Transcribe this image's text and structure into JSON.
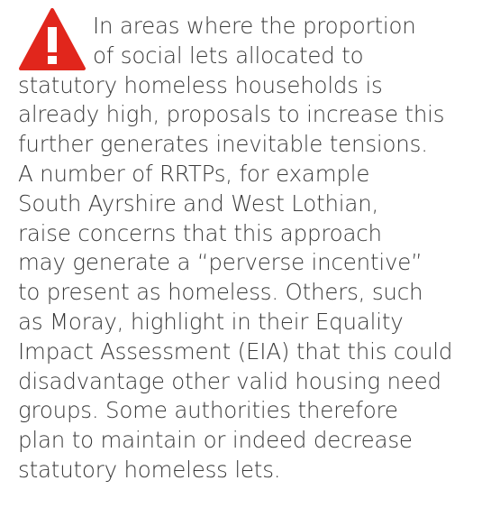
{
  "paragraph": {
    "lines": [
      "In areas where the proportion",
      "of social lets allocated to",
      "statutory homeless households is",
      "already high, proposals to increase this",
      "further generates inevitable tensions.",
      "A number of RRTPs, for example",
      "South Ayrshire and West Lothian,",
      "raise concerns that this approach",
      "may generate a “perverse incentive”",
      "to present as homeless. Others, such",
      "as Moray, highlight in their Equality",
      "Impact Assessment (EIA) that this could",
      "disadvantage other valid housing need",
      "groups. Some authorities therefore",
      "plan to maintain or indeed decrease",
      "statutory homeless lets."
    ]
  }
}
